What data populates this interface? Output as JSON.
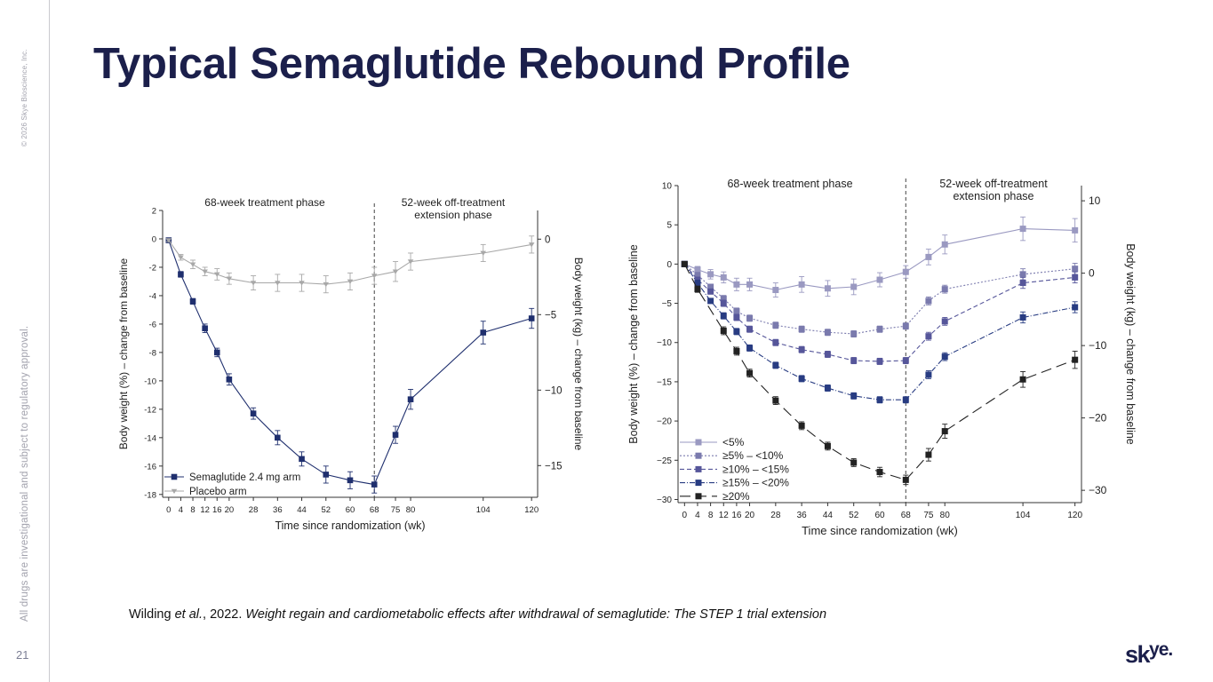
{
  "slide": {
    "title": "Typical Semaglutide Rebound Profile",
    "copyright": "© 2026 Skye Bioscience, Inc.",
    "disclaimer": "All drugs are investigational and subject to regulatory approval.",
    "page_number": "21",
    "citation_author": "Wilding ",
    "citation_etal": "et al.",
    "citation_year": ", 2022. ",
    "citation_paper": "Weight regain and cardiometabolic effects after withdrawal of semaglutide: The STEP 1 trial extension",
    "logo_main": "sk",
    "logo_sup": "ye",
    "logo_end": "."
  },
  "colors": {
    "title": "#1b1f4b",
    "semaglutide": "#1f2f6e",
    "placebo": "#a8a8a8",
    "lt5": "#9a99c1",
    "p5_10": "#7a7aad",
    "p10_15": "#56569a",
    "p15_20": "#283c82",
    "ge20": "#222222"
  },
  "chart_data": [
    {
      "type": "line",
      "phase_labels": [
        "68-week treatment phase",
        "52-week off-treatment\nextension phase"
      ],
      "divider_x": 68,
      "xlabel": "Time since randomization (wk)",
      "ylabel": "Body weight (%) – change from baseline",
      "y2label": "Body weight (kg) – change from baseline",
      "xlim": [
        -2,
        122
      ],
      "ylim": [
        -18.2,
        2
      ],
      "y2lim": [
        -17.1,
        1.9
      ],
      "xticks": [
        0,
        4,
        8,
        12,
        16,
        20,
        28,
        36,
        44,
        52,
        60,
        68,
        75,
        80,
        104,
        120
      ],
      "yticks": [
        2,
        0,
        -2,
        -4,
        -6,
        -8,
        -10,
        -12,
        -14,
        -16,
        -18
      ],
      "y2ticks": [
        0,
        -5,
        -10,
        -15
      ],
      "y2ticklabels": [
        "0",
        "−5",
        "−10",
        "−15"
      ],
      "legend_position": "bottom-left",
      "series": [
        {
          "name": "Semaglutide 2.4 mg arm",
          "marker": "square",
          "dash": "",
          "color": "#1f2f6e",
          "x": [
            0,
            4,
            8,
            12,
            16,
            20,
            28,
            36,
            44,
            52,
            60,
            68,
            75,
            80,
            104,
            120
          ],
          "y": [
            -0.1,
            -2.5,
            -4.4,
            -6.3,
            -8.0,
            -9.9,
            -12.3,
            -14.0,
            -15.5,
            -16.6,
            -17.0,
            -17.3,
            -13.8,
            -11.3,
            -6.6,
            -5.6
          ],
          "err": [
            0.1,
            0.2,
            0.2,
            0.3,
            0.3,
            0.4,
            0.4,
            0.5,
            0.5,
            0.6,
            0.6,
            0.6,
            0.6,
            0.7,
            0.8,
            0.7
          ]
        },
        {
          "name": "Placebo arm",
          "marker": "triangle-down",
          "dash": "",
          "color": "#a8a8a8",
          "x": [
            0,
            4,
            8,
            12,
            16,
            20,
            28,
            36,
            44,
            52,
            60,
            68,
            75,
            80,
            104,
            120
          ],
          "y": [
            -0.1,
            -1.3,
            -1.8,
            -2.3,
            -2.5,
            -2.8,
            -3.1,
            -3.1,
            -3.1,
            -3.2,
            -3.0,
            -2.6,
            -2.3,
            -1.6,
            -1.0,
            -0.4
          ],
          "err": [
            0.1,
            0.2,
            0.3,
            0.3,
            0.4,
            0.4,
            0.5,
            0.6,
            0.6,
            0.6,
            0.6,
            0.6,
            0.7,
            0.6,
            0.6,
            0.6
          ]
        }
      ]
    },
    {
      "type": "line",
      "phase_labels": [
        "68-week treatment phase",
        "52-week off-treatment\nextension phase"
      ],
      "divider_x": 68,
      "xlabel": "Time since randomization (wk)",
      "ylabel": "Body weight (%) – change from baseline",
      "y2label": "Body weight (kg) – change from baseline",
      "xlim": [
        -2,
        122
      ],
      "ylim": [
        -30.4,
        10
      ],
      "y2lim": [
        -31.7,
        12.1
      ],
      "xticks": [
        0,
        4,
        8,
        12,
        16,
        20,
        28,
        36,
        44,
        52,
        60,
        68,
        75,
        80,
        104,
        120
      ],
      "yticks": [
        10,
        5,
        0,
        -5,
        -10,
        -15,
        -20,
        -25,
        -30
      ],
      "yticklabels": [
        "10",
        "5",
        "0",
        "−5",
        "−10",
        "−15",
        "−20",
        "−25",
        "−30"
      ],
      "y2ticks": [
        10,
        0,
        -10,
        -20,
        -30
      ],
      "y2ticklabels": [
        "10",
        "0",
        "−10",
        "−20",
        "−30"
      ],
      "legend_position": "bottom-left",
      "series": [
        {
          "name": "<5%",
          "marker": "square",
          "dash": "",
          "color": "#9a99c1",
          "x": [
            0,
            4,
            8,
            12,
            16,
            20,
            28,
            36,
            44,
            52,
            60,
            68,
            75,
            80,
            104,
            120
          ],
          "y": [
            0.0,
            -0.7,
            -1.3,
            -1.7,
            -2.6,
            -2.6,
            -3.3,
            -2.6,
            -3.1,
            -2.9,
            -2.0,
            -1.0,
            0.9,
            2.5,
            4.5,
            4.3
          ],
          "err": [
            0.1,
            0.4,
            0.6,
            0.7,
            0.8,
            0.8,
            0.9,
            1.0,
            1.0,
            1.0,
            0.9,
            0.8,
            1.0,
            1.2,
            1.5,
            1.5
          ]
        },
        {
          "name": "≥5% – <10%",
          "marker": "square",
          "dash": "2 2",
          "color": "#7a7aad",
          "x": [
            0,
            4,
            8,
            12,
            16,
            20,
            28,
            36,
            44,
            52,
            60,
            68,
            75,
            80,
            104,
            120
          ],
          "y": [
            0.0,
            -1.4,
            -2.9,
            -4.4,
            -6.0,
            -6.9,
            -7.8,
            -8.3,
            -8.7,
            -8.9,
            -8.3,
            -7.9,
            -4.7,
            -3.2,
            -1.3,
            -0.6
          ],
          "err": [
            0.1,
            0.3,
            0.3,
            0.4,
            0.4,
            0.4,
            0.4,
            0.4,
            0.4,
            0.4,
            0.4,
            0.4,
            0.5,
            0.5,
            0.7,
            0.7
          ]
        },
        {
          "name": "≥10% – <15%",
          "marker": "square",
          "dash": "5 3",
          "color": "#56569a",
          "x": [
            0,
            4,
            8,
            12,
            16,
            20,
            28,
            36,
            44,
            52,
            60,
            68,
            75,
            80,
            104,
            120
          ],
          "y": [
            0.0,
            -2.0,
            -3.5,
            -5.0,
            -6.8,
            -8.3,
            -10.0,
            -10.9,
            -11.5,
            -12.3,
            -12.4,
            -12.3,
            -9.2,
            -7.3,
            -2.4,
            -1.7
          ],
          "err": [
            0.1,
            0.3,
            0.3,
            0.4,
            0.4,
            0.4,
            0.4,
            0.4,
            0.4,
            0.4,
            0.4,
            0.4,
            0.5,
            0.5,
            0.7,
            0.7
          ]
        },
        {
          "name": "≥15% – <20%",
          "marker": "square",
          "dash": "6 2 1 2",
          "color": "#283c82",
          "x": [
            0,
            4,
            8,
            12,
            16,
            20,
            28,
            36,
            44,
            52,
            60,
            68,
            75,
            80,
            104,
            120
          ],
          "y": [
            0.0,
            -2.4,
            -4.7,
            -6.6,
            -8.6,
            -10.7,
            -12.9,
            -14.6,
            -15.8,
            -16.8,
            -17.3,
            -17.3,
            -14.1,
            -11.8,
            -6.8,
            -5.5
          ],
          "err": [
            0.1,
            0.3,
            0.3,
            0.4,
            0.4,
            0.4,
            0.4,
            0.4,
            0.4,
            0.4,
            0.4,
            0.4,
            0.5,
            0.5,
            0.7,
            0.7
          ]
        },
        {
          "name": "≥20%",
          "marker": "square",
          "dash": "12 6",
          "color": "#222222",
          "x": [
            0,
            4,
            12,
            16,
            20,
            28,
            36,
            44,
            52,
            60,
            68,
            75,
            80,
            104,
            120
          ],
          "y": [
            0.0,
            -3.2,
            -8.5,
            -11.1,
            -13.9,
            -17.4,
            -20.6,
            -23.2,
            -25.3,
            -26.5,
            -27.5,
            -24.3,
            -21.3,
            -14.7,
            -12.2
          ],
          "err": [
            0.1,
            0.4,
            0.5,
            0.5,
            0.5,
            0.5,
            0.5,
            0.5,
            0.5,
            0.6,
            0.6,
            0.8,
            0.9,
            1.0,
            1.1
          ]
        }
      ]
    }
  ]
}
